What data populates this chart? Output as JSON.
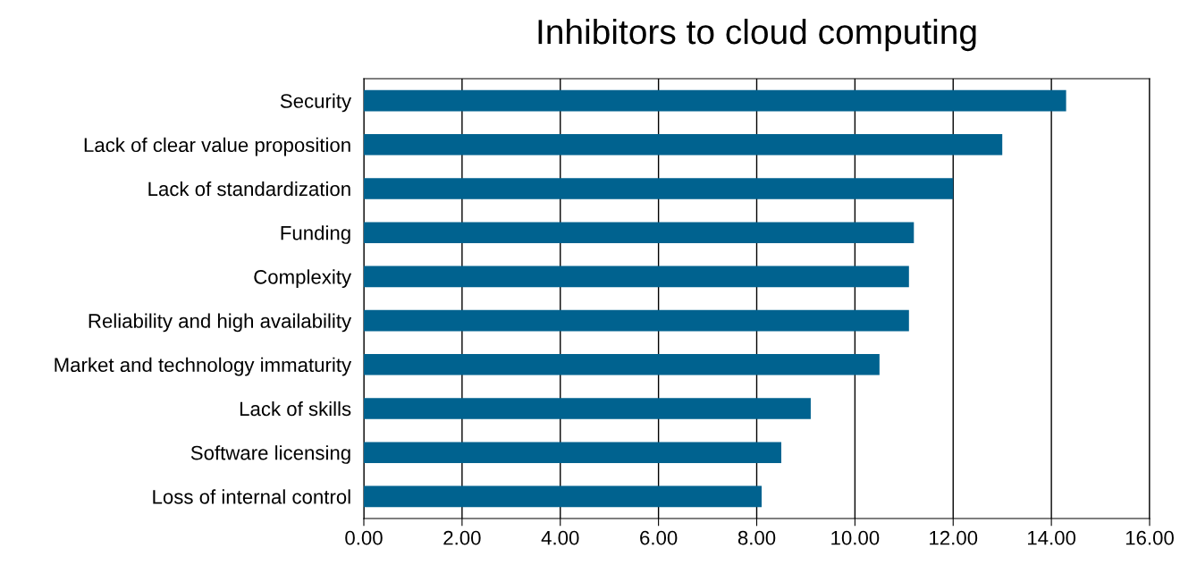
{
  "chart_data": {
    "type": "bar",
    "orientation": "horizontal",
    "title": "Inhibitors to cloud computing",
    "categories": [
      "Security",
      "Lack of clear value proposition",
      "Lack of standardization",
      "Funding",
      "Complexity",
      "Reliability and high availability",
      "Market and technology immaturity",
      "Lack of skills",
      "Software licensing",
      "Loss of internal control"
    ],
    "values": [
      14.3,
      13.0,
      12.0,
      11.2,
      11.1,
      11.1,
      10.5,
      9.1,
      8.5,
      8.1
    ],
    "color": "#00628f",
    "xlim": [
      0,
      16
    ],
    "xticks": [
      {
        "value": 0,
        "label": "0.00"
      },
      {
        "value": 2,
        "label": "2.00"
      },
      {
        "value": 4,
        "label": "4.00"
      },
      {
        "value": 6,
        "label": "6.00"
      },
      {
        "value": 8,
        "label": "8.00"
      },
      {
        "value": 10,
        "label": "10.00"
      },
      {
        "value": 12,
        "label": "12.00"
      },
      {
        "value": 14,
        "label": "14.00"
      },
      {
        "value": 16,
        "label": "16.00"
      }
    ],
    "grid": "x"
  }
}
